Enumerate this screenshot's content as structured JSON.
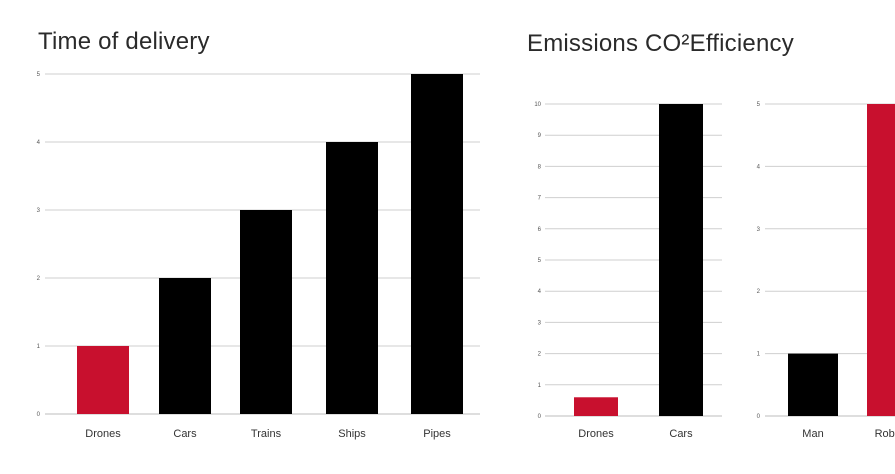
{
  "colors": {
    "highlight": "#c8102e",
    "bar": "#000000",
    "grid": "#cfcfcf"
  },
  "chart_data": [
    {
      "type": "bar",
      "title": "Time of delivery",
      "categories": [
        "Drones",
        "Cars",
        "Trains",
        "Ships",
        "Pipes"
      ],
      "values": [
        1,
        2,
        3,
        4,
        5
      ],
      "highlight": [
        true,
        false,
        false,
        false,
        false
      ],
      "ylim": [
        0,
        5
      ],
      "yticks": [
        "0",
        "1",
        "2",
        "3",
        "4",
        "5"
      ],
      "grid": true
    },
    {
      "type": "bar",
      "title": "Emissions CO²Efficiency",
      "categories": [
        "Drones",
        "Cars"
      ],
      "values": [
        0.6,
        10
      ],
      "highlight": [
        true,
        false
      ],
      "ylim": [
        0,
        10
      ],
      "yticks": [
        "0",
        "1",
        "2",
        "3",
        "4",
        "5",
        "6",
        "7",
        "8",
        "9",
        "10"
      ],
      "grid": true
    },
    {
      "type": "bar",
      "title": "",
      "categories": [
        "Man",
        "Robots"
      ],
      "values": [
        1,
        5
      ],
      "highlight": [
        false,
        true
      ],
      "ylim": [
        0,
        5
      ],
      "yticks": [
        "0",
        "1",
        "2",
        "3",
        "4",
        "5"
      ],
      "grid": true
    }
  ]
}
